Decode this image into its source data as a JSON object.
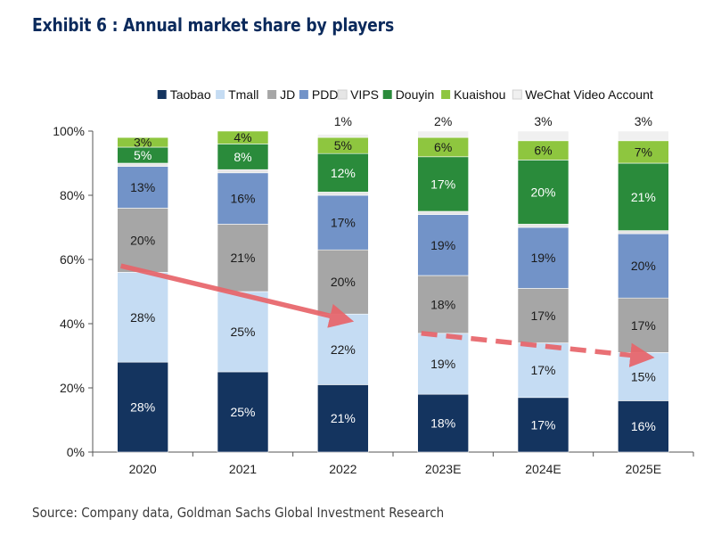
{
  "title": "Exhibit 6 : Annual market share by players",
  "source": "Source: Company data, Goldman Sachs Global Investment Research",
  "chart_data": {
    "type": "bar",
    "stacked": true,
    "categories": [
      "2020",
      "2021",
      "2022",
      "2023E",
      "2024E",
      "2025E"
    ],
    "ylim": [
      0,
      100
    ],
    "yticks": [
      "0%",
      "20%",
      "40%",
      "60%",
      "80%",
      "100%"
    ],
    "legend_position": "top",
    "series": [
      {
        "name": "Taobao",
        "color": "#14345f",
        "label_color": "#ffffff",
        "values": [
          28,
          25,
          21,
          18,
          17,
          16
        ],
        "labels": [
          "28%",
          "25%",
          "21%",
          "18%",
          "17%",
          "16%"
        ]
      },
      {
        "name": "Tmall",
        "color": "#c5dcf3",
        "label_color": "#1a1a1a",
        "values": [
          28,
          25,
          22,
          19,
          17,
          15
        ],
        "labels": [
          "28%",
          "25%",
          "22%",
          "19%",
          "17%",
          "15%"
        ]
      },
      {
        "name": "JD",
        "color": "#a6a6a6",
        "label_color": "#1a1a1a",
        "values": [
          20,
          21,
          20,
          18,
          17,
          17
        ],
        "labels": [
          "20%",
          "21%",
          "20%",
          "18%",
          "17%",
          "17%"
        ]
      },
      {
        "name": "PDD",
        "color": "#7293c8",
        "label_color": "#1a1a1a",
        "values": [
          13,
          16,
          17,
          19,
          19,
          20
        ],
        "labels": [
          "13%",
          "16%",
          "17%",
          "19%",
          "19%",
          "20%"
        ]
      },
      {
        "name": "VIPS",
        "color": "#e6e6e6",
        "label_color": "#1a1a1a",
        "values": [
          1,
          1,
          1,
          1,
          1,
          1
        ],
        "labels": [
          "",
          "",
          "",
          "",
          "",
          ""
        ]
      },
      {
        "name": "Douyin",
        "color": "#2a8b3b",
        "label_color": "#ffffff",
        "values": [
          5,
          8,
          12,
          17,
          20,
          21
        ],
        "labels": [
          "5%",
          "8%",
          "12%",
          "17%",
          "20%",
          "21%"
        ]
      },
      {
        "name": "Kuaishou",
        "color": "#8ec63f",
        "label_color": "#1a1a1a",
        "values": [
          3,
          4,
          5,
          6,
          6,
          7
        ],
        "labels": [
          "3%",
          "4%",
          "5%",
          "6%",
          "6%",
          "7%"
        ]
      },
      {
        "name": "WeChat Video Account",
        "color": "#f0f0f0",
        "label_color": "#1a1a1a",
        "values": [
          0,
          0,
          1,
          2,
          3,
          3
        ],
        "labels": [
          "",
          "",
          "1%",
          "2%",
          "3%",
          "3%"
        ]
      }
    ],
    "annotations": [
      {
        "type": "arrow",
        "style": "solid",
        "color": "#e8646a",
        "from": [
          "2020",
          58
        ],
        "to": [
          "2022",
          42
        ]
      },
      {
        "type": "arrow",
        "style": "dashed",
        "color": "#e8646a",
        "from": [
          "2023E",
          37
        ],
        "to": [
          "2025E",
          30
        ]
      }
    ]
  }
}
